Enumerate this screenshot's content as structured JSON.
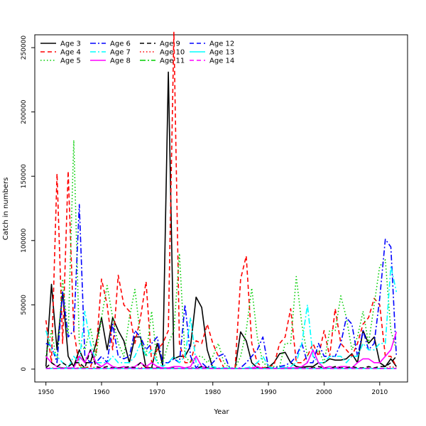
{
  "chart_data": {
    "type": "line",
    "title": "",
    "xlabel": "Year",
    "ylabel": "Catch in numbers",
    "xlim": [
      1948,
      2015
    ],
    "ylim": [
      -10000,
      260000
    ],
    "xticks": [
      "1950",
      "1960",
      "1970",
      "1980",
      "1990",
      "2000",
      "2010"
    ],
    "yticks": [
      "0",
      "50000",
      "100000",
      "150000",
      "200000",
      "250000"
    ],
    "grid": false,
    "legend_position": "top-left",
    "x": [
      1950,
      1951,
      1952,
      1953,
      1954,
      1955,
      1956,
      1957,
      1958,
      1959,
      1960,
      1961,
      1962,
      1963,
      1964,
      1965,
      1966,
      1967,
      1968,
      1969,
      1970,
      1971,
      1972,
      1973,
      1974,
      1975,
      1976,
      1977,
      1978,
      1979,
      1980,
      1981,
      1982,
      1983,
      1984,
      1985,
      1986,
      1987,
      1988,
      1989,
      1990,
      1991,
      1992,
      1993,
      1994,
      1995,
      1996,
      1997,
      1998,
      1999,
      2000,
      2001,
      2002,
      2003,
      2004,
      2005,
      2006,
      2007,
      2008,
      2009,
      2010,
      2011,
      2012,
      2013
    ],
    "series": [
      {
        "name": "Age 3",
        "color": "#000000",
        "dash": "solid",
        "values": [
          2000,
          66000,
          15000,
          60000,
          10000,
          2000,
          15000,
          5000,
          5000,
          20000,
          40000,
          15000,
          40000,
          30000,
          22000,
          5000,
          25000,
          25000,
          1000,
          1000,
          20000,
          3000,
          231000,
          8000,
          10000,
          10000,
          18000,
          56000,
          48000,
          15000,
          1000,
          500,
          500,
          500,
          500,
          29000,
          22000,
          5000,
          1000,
          500,
          1500,
          5000,
          12000,
          13000,
          5000,
          2000,
          1500,
          2000,
          2000,
          5000,
          5000,
          8000,
          7000,
          7000,
          8000,
          12000,
          5000,
          30000,
          20000,
          25000,
          5000,
          2000,
          8000,
          2000
        ]
      },
      {
        "name": "Age 4",
        "color": "#ff0000",
        "dash": "6,4",
        "values": [
          38000,
          5000,
          152000,
          20000,
          154000,
          30000,
          3000,
          1000,
          2000,
          12000,
          70000,
          50000,
          15000,
          73000,
          50000,
          45000,
          20000,
          40000,
          68000,
          5000,
          15000,
          20000,
          30000,
          262000,
          20000,
          5000,
          5000,
          22000,
          20000,
          35000,
          20000,
          10000,
          1000,
          500,
          1000,
          70000,
          88000,
          20000,
          5000,
          1000,
          2000,
          3000,
          20000,
          25000,
          47000,
          5000,
          5000,
          10000,
          20000,
          10000,
          30000,
          10000,
          47000,
          20000,
          15000,
          10000,
          20000,
          35000,
          40000,
          55000,
          50000,
          10000,
          10000,
          2000
        ]
      },
      {
        "name": "Age 5",
        "color": "#00cd00",
        "dash": "1.5,3",
        "values": [
          10000,
          30000,
          5000,
          70000,
          25000,
          178000,
          20000,
          15000,
          32000,
          10000,
          40000,
          65000,
          40000,
          20000,
          10000,
          40000,
          62000,
          25000,
          10000,
          45000,
          5000,
          5000,
          20000,
          30000,
          90000,
          10000,
          5000,
          10000,
          10000,
          5000,
          10000,
          20000,
          5000,
          1000,
          500,
          10000,
          30000,
          63000,
          25000,
          5000,
          2000,
          2000,
          2000,
          20000,
          20000,
          72000,
          35000,
          10000,
          10000,
          15000,
          5000,
          30000,
          30000,
          57000,
          40000,
          15000,
          25000,
          45000,
          20000,
          50000,
          80000,
          85000,
          30000,
          15000
        ]
      },
      {
        "name": "Age 6",
        "color": "#0000ff",
        "dash": "8,3,2,3",
        "values": [
          20000,
          18000,
          5000,
          60000,
          25000,
          30000,
          128000,
          10000,
          5000,
          5000,
          10000,
          5000,
          35000,
          10000,
          8000,
          10000,
          30000,
          25000,
          15000,
          20000,
          25000,
          5000,
          5000,
          8000,
          5000,
          50000,
          10000,
          1000,
          5000,
          1000,
          5000,
          10000,
          12000,
          1000,
          500,
          1000,
          5000,
          10000,
          15000,
          25000,
          1000,
          1000,
          2000,
          3000,
          5000,
          10000,
          20000,
          5000,
          5000,
          20000,
          10000,
          10000,
          10000,
          20000,
          40000,
          35000,
          10000,
          30000,
          15000,
          20000,
          55000,
          101000,
          95000,
          10000
        ]
      },
      {
        "name": "Age 7",
        "color": "#00ffff",
        "dash": "8,3,2,3",
        "values": [
          30000,
          15000,
          10000,
          5000,
          1000,
          10000,
          5000,
          45000,
          20000,
          5000,
          5000,
          5000,
          10000,
          5000,
          5000,
          5000,
          10000,
          20000,
          10000,
          15000,
          5000,
          2000,
          5000,
          10000,
          5000,
          10000,
          40000,
          5000,
          1000,
          500,
          2000,
          1000,
          1000,
          1000,
          500,
          500,
          1000,
          2000,
          5000,
          10000,
          2000,
          500,
          1000,
          2000,
          2000,
          5000,
          20000,
          50000,
          10000,
          5000,
          5000,
          10000,
          10000,
          10000,
          5000,
          10000,
          10000,
          20000,
          15000,
          15000,
          20000,
          20000,
          80000,
          60000
        ]
      },
      {
        "name": "Age 8",
        "color": "#ff00ff",
        "dash": "solid",
        "values": [
          10000,
          5000,
          2000,
          1000,
          1000,
          1000,
          10000,
          5000,
          15000,
          5000,
          2000,
          5000,
          2000,
          1000,
          2000,
          1000,
          2000,
          5000,
          2000,
          5000,
          2000,
          1000,
          1000,
          2000,
          2000,
          1000,
          2000,
          10000,
          2000,
          1000,
          500,
          500,
          500,
          500,
          500,
          500,
          500,
          1000,
          2000,
          500,
          500,
          500,
          500,
          1000,
          1000,
          1000,
          2000,
          5000,
          15000,
          5000,
          1000,
          2000,
          1000,
          2000,
          2000,
          1000,
          5000,
          8000,
          8000,
          5000,
          5000,
          10000,
          15000,
          29000
        ]
      },
      {
        "name": "Age 9",
        "color": "#000000",
        "dash": "6,4",
        "values": [
          1000,
          5000,
          2000,
          5000,
          2000,
          5000,
          5000,
          1000,
          15000,
          2000,
          1000,
          2000,
          1000,
          1000,
          1000,
          2000,
          1000,
          5000,
          1000,
          1000,
          1000,
          500,
          500,
          1000,
          500,
          500,
          1000,
          500,
          2000,
          1000,
          500,
          500,
          500,
          500,
          500,
          500,
          500,
          500,
          500,
          500,
          500,
          500,
          500,
          500,
          500,
          500,
          1000,
          2000,
          1000,
          2000,
          1000,
          500,
          2000,
          1000,
          1000,
          2000,
          1000,
          1000,
          2000,
          1000,
          2000,
          2000,
          5000,
          10000
        ]
      },
      {
        "name": "Age 10",
        "color": "#ff0000",
        "dash": "1.5,3",
        "values": [
          500,
          1000,
          500,
          1000,
          500,
          500,
          1000,
          1000,
          2000,
          1000,
          1000,
          500,
          500,
          500,
          1000,
          500,
          500,
          1000,
          2000,
          1000,
          500,
          500,
          500,
          500,
          500,
          500,
          500,
          500,
          500,
          500,
          500,
          500,
          500,
          500,
          500,
          500,
          500,
          500,
          500,
          500,
          500,
          500,
          500,
          500,
          500,
          500,
          500,
          500,
          1000,
          500,
          500,
          500,
          500,
          500,
          1000,
          500,
          500,
          500,
          1000,
          500,
          500,
          500,
          2000,
          1000
        ]
      },
      {
        "name": "Age 11",
        "color": "#00cd00",
        "dash": "8,3,2,3",
        "values": [
          500,
          500,
          500,
          1000,
          500,
          500,
          1000,
          1000,
          500,
          500,
          500,
          500,
          500,
          500,
          500,
          500,
          500,
          500,
          500,
          500,
          500,
          500,
          500,
          500,
          500,
          500,
          500,
          500,
          500,
          500,
          500,
          500,
          500,
          500,
          500,
          500,
          500,
          500,
          500,
          500,
          500,
          500,
          500,
          500,
          500,
          500,
          500,
          500,
          500,
          500,
          500,
          500,
          500,
          500,
          500,
          500,
          500,
          500,
          500,
          500,
          500,
          500,
          500,
          500
        ]
      },
      {
        "name": "Age 12",
        "color": "#0000ff",
        "dash": "6,4",
        "values": [
          500,
          500,
          500,
          500,
          500,
          500,
          500,
          500,
          500,
          500,
          500,
          500,
          500,
          500,
          500,
          500,
          500,
          500,
          500,
          500,
          500,
          500,
          500,
          500,
          500,
          500,
          500,
          500,
          500,
          500,
          500,
          500,
          500,
          500,
          500,
          500,
          500,
          500,
          500,
          500,
          500,
          500,
          500,
          500,
          500,
          500,
          500,
          500,
          500,
          500,
          500,
          500,
          500,
          500,
          500,
          500,
          500,
          500,
          500,
          500,
          500,
          500,
          500,
          500
        ]
      },
      {
        "name": "Age 13",
        "color": "#00ffff",
        "dash": "solid",
        "values": [
          500,
          500,
          500,
          500,
          500,
          500,
          500,
          500,
          500,
          500,
          500,
          500,
          500,
          500,
          500,
          500,
          500,
          500,
          500,
          500,
          500,
          500,
          500,
          500,
          500,
          500,
          500,
          500,
          500,
          500,
          500,
          500,
          500,
          500,
          500,
          500,
          500,
          500,
          500,
          500,
          500,
          500,
          500,
          500,
          500,
          500,
          500,
          500,
          500,
          500,
          500,
          500,
          500,
          500,
          500,
          500,
          500,
          500,
          500,
          500,
          500,
          500,
          500,
          500
        ]
      },
      {
        "name": "Age 14",
        "color": "#ff00ff",
        "dash": "6,4",
        "values": [
          500,
          500,
          500,
          500,
          500,
          500,
          500,
          500,
          500,
          500,
          500,
          500,
          500,
          500,
          500,
          500,
          500,
          500,
          500,
          500,
          500,
          500,
          500,
          500,
          500,
          500,
          500,
          500,
          500,
          500,
          500,
          500,
          500,
          500,
          500,
          500,
          500,
          500,
          500,
          500,
          500,
          500,
          500,
          500,
          500,
          500,
          500,
          500,
          500,
          500,
          500,
          500,
          500,
          500,
          500,
          500,
          500,
          500,
          500,
          500,
          500,
          500,
          500,
          500
        ]
      }
    ]
  }
}
